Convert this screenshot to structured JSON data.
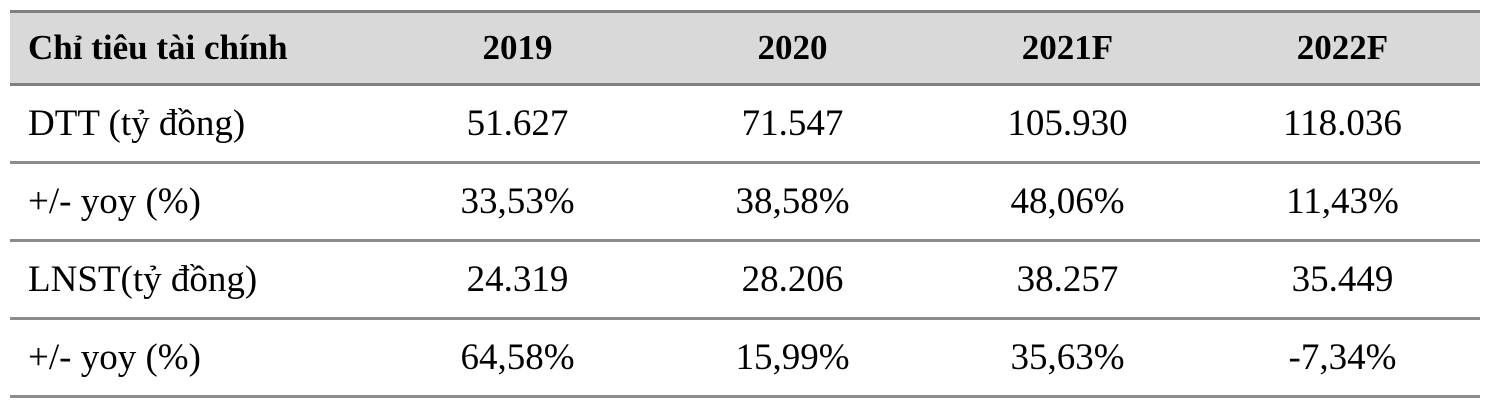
{
  "table": {
    "header": [
      "Chỉ tiêu tài chính",
      "2019",
      "2020",
      "2021F",
      "2022F"
    ],
    "rows": [
      [
        "DTT (tỷ đồng)",
        "51.627",
        "71.547",
        "105.930",
        "118.036"
      ],
      [
        "+/- yoy (%)",
        "33,53%",
        "38,58%",
        "48,06%",
        "11,43%"
      ],
      [
        "LNST(tỷ đồng)",
        "24.319",
        "28.206",
        "38.257",
        "35.449"
      ],
      [
        "+/- yoy (%)",
        "64,58%",
        "15,99%",
        "35,63%",
        "-7,34%"
      ]
    ]
  }
}
